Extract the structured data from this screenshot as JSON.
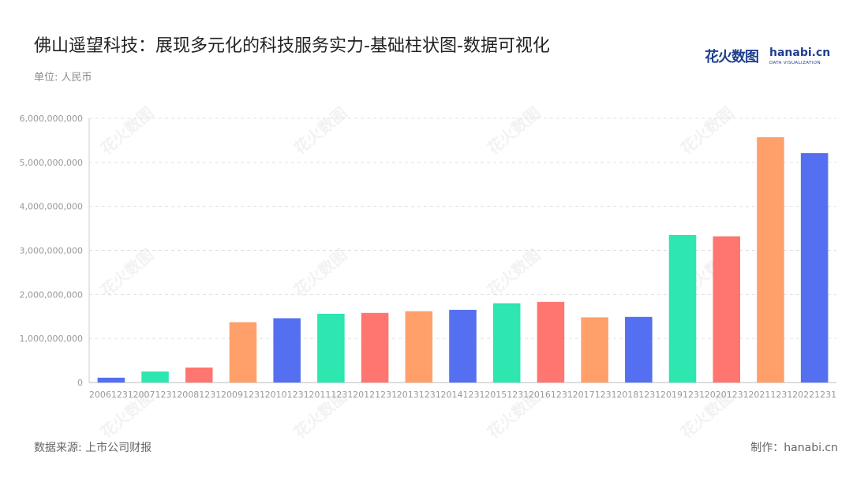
{
  "header": {
    "title": "佛山遥望科技：展现多元化的科技服务实力-基础柱状图-数据可视化",
    "unit": "单位: 人民币"
  },
  "logo": {
    "cn": "花火数图",
    "en": "hanabi.cn",
    "sub": "DATA VISUALIZATION"
  },
  "footer": {
    "source": "数据来源: 上市公司财报",
    "credit": "制作：hanabi.cn"
  },
  "watermark_text": "花火数图",
  "chart_data": {
    "type": "bar",
    "categories": [
      "20061231",
      "20071231",
      "20081231",
      "20091231",
      "20101231",
      "20111231",
      "20121231",
      "20131231",
      "20141231",
      "20151231",
      "20161231",
      "20171231",
      "20181231",
      "20191231",
      "20201231",
      "20211231",
      "20221231"
    ],
    "values": [
      110000000,
      250000000,
      340000000,
      1370000000,
      1460000000,
      1560000000,
      1580000000,
      1620000000,
      1650000000,
      1800000000,
      1830000000,
      1480000000,
      1490000000,
      3350000000,
      3320000000,
      5570000000,
      5210000000
    ],
    "colors": [
      "#5470f0",
      "#2de6b0",
      "#ff7570",
      "#ffa06b"
    ],
    "ylim": [
      0,
      6000000000
    ],
    "yticks": [
      0,
      1000000000,
      2000000000,
      3000000000,
      4000000000,
      5000000000,
      6000000000
    ],
    "ytick_labels": [
      "0",
      "1,000,000,000",
      "2,000,000,000",
      "3,000,000,000",
      "4,000,000,000",
      "5,000,000,000",
      "6,000,000,000"
    ],
    "grid": true,
    "title": "佛山遥望科技：展现多元化的科技服务实力-基础柱状图-数据可视化",
    "xlabel": "",
    "ylabel": ""
  }
}
